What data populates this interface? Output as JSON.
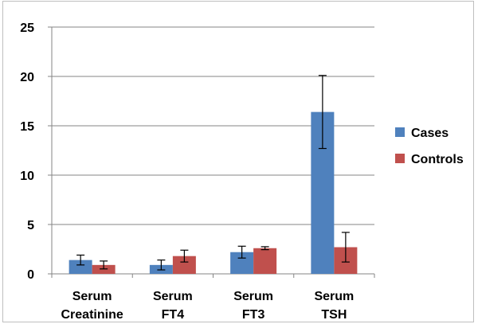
{
  "chart_data": {
    "type": "bar",
    "categories": [
      [
        "Serum",
        "Creatinine"
      ],
      [
        "Serum",
        "FT4"
      ],
      [
        "Serum",
        "FT3"
      ],
      [
        "Serum",
        "TSH"
      ]
    ],
    "series": [
      {
        "name": "Cases",
        "color": "#4f81bd",
        "values": [
          1.4,
          0.9,
          2.2,
          16.4
        ],
        "error": [
          0.5,
          0.5,
          0.6,
          3.7
        ]
      },
      {
        "name": "Controls",
        "color": "#c0504d",
        "values": [
          0.9,
          1.8,
          2.6,
          2.7
        ],
        "error": [
          0.4,
          0.6,
          0.15,
          1.5
        ]
      }
    ],
    "ylim": [
      0,
      25
    ],
    "yticks": [
      0,
      5,
      10,
      15,
      20,
      25
    ],
    "grid": true,
    "legend_position": "right",
    "title": "",
    "xlabel": "",
    "ylabel": ""
  }
}
